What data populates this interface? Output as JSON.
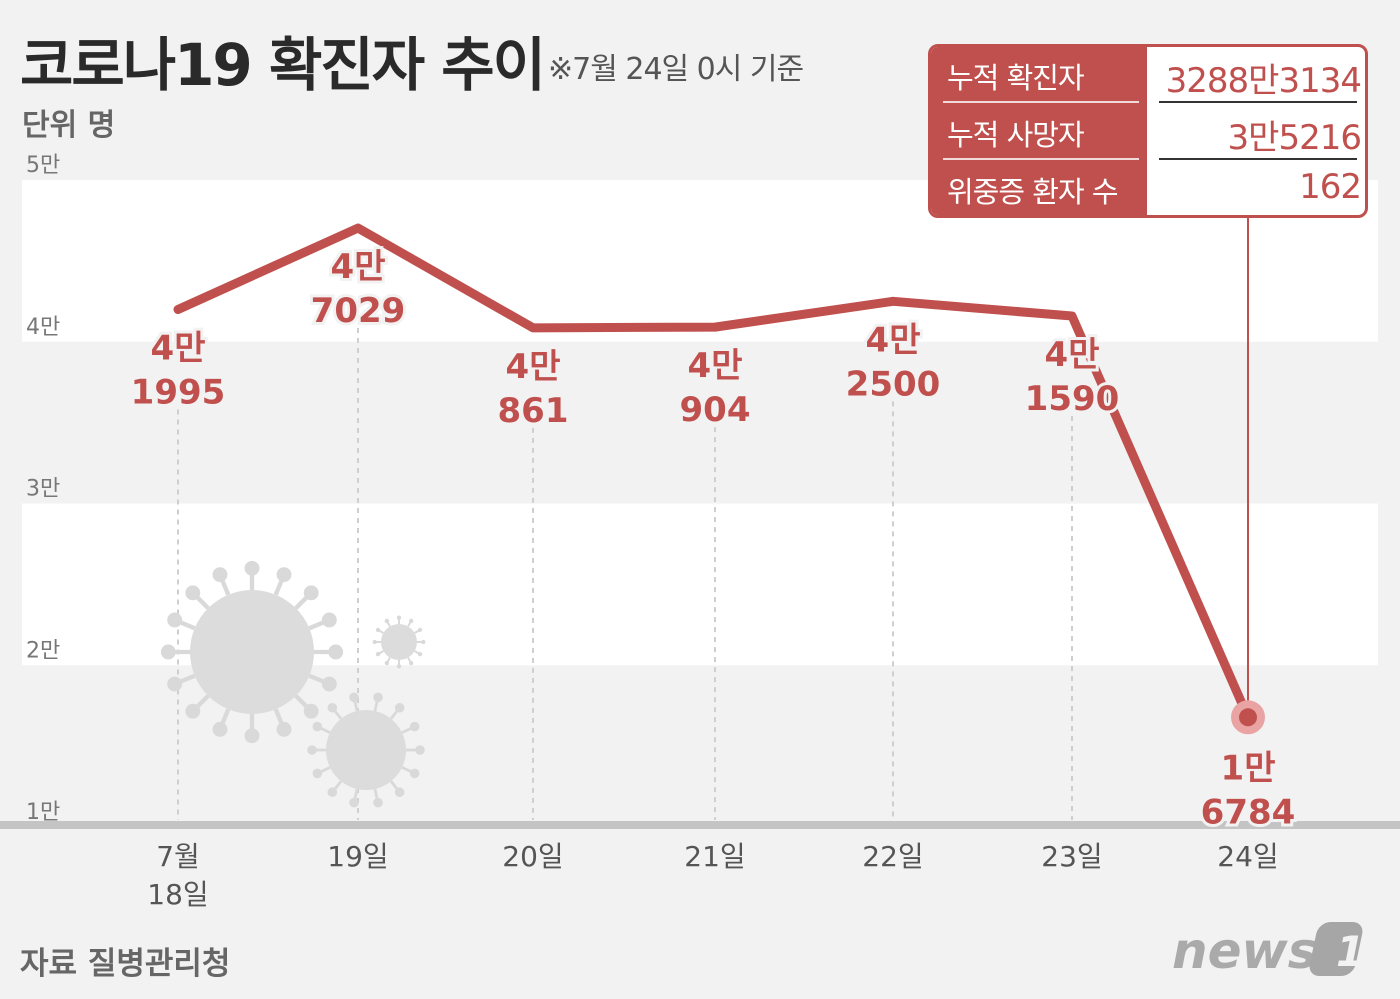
{
  "header": {
    "title": "코로나19 확진자 추이",
    "basis": "※7월 24일 0시 기준",
    "unit": "단위 명"
  },
  "stats": [
    {
      "label": "누적 확진자",
      "value": "3288만3134"
    },
    {
      "label": "누적 사망자",
      "value": "3만5216"
    },
    {
      "label": "위중증 환자 수",
      "value": "162"
    }
  ],
  "source": "자료 질병관리청",
  "logo": {
    "text": "news",
    "mark": "1"
  },
  "colors": {
    "accent": "#c0504d",
    "text": "#666666",
    "band": "#ffffff",
    "background": "#f2f2f2"
  },
  "chart_data": {
    "type": "line",
    "title": "코로나19 확진자 추이",
    "ylabel": "단위 명",
    "ylim": [
      10000,
      50000
    ],
    "y_ticks": [
      10000,
      20000,
      30000,
      40000,
      50000
    ],
    "y_tick_labels": [
      "1만",
      "2만",
      "3만",
      "4만",
      "5만"
    ],
    "categories": [
      [
        "7월",
        "18일"
      ],
      [
        "19일"
      ],
      [
        "20일"
      ],
      [
        "21일"
      ],
      [
        "22일"
      ],
      [
        "23일"
      ],
      [
        "24일"
      ]
    ],
    "values": [
      41995,
      47029,
      40861,
      40904,
      42500,
      41590,
      16784
    ],
    "data_labels": [
      [
        "4만",
        "1995"
      ],
      [
        "4만",
        "7029"
      ],
      [
        "4만",
        "861"
      ],
      [
        "4만",
        "904"
      ],
      [
        "4만",
        "2500"
      ],
      [
        "4만",
        "1590"
      ],
      [
        "1만",
        "6784"
      ]
    ],
    "legend": "none",
    "grid": "alternating horizontal bands"
  }
}
